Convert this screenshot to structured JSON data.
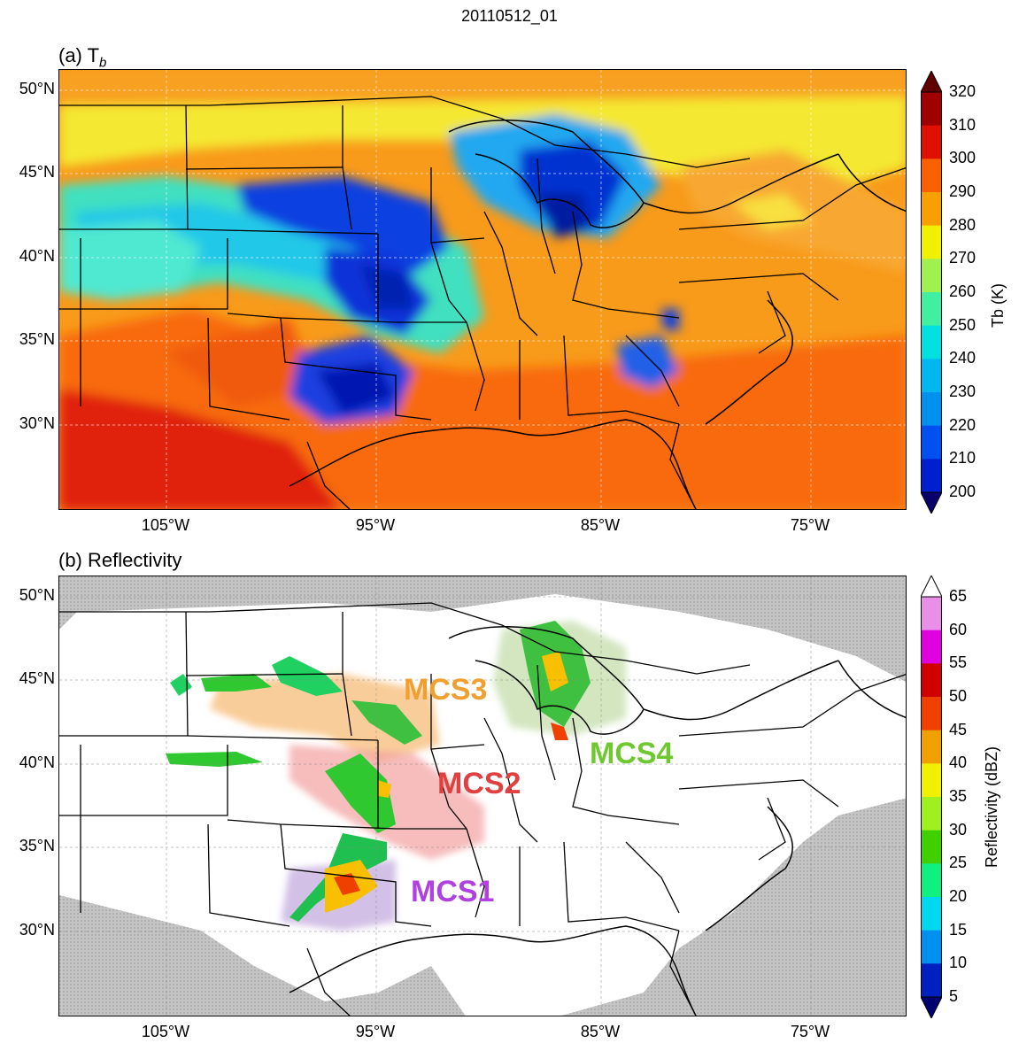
{
  "suptitle": "20110512_01",
  "panels": [
    {
      "id": "a",
      "title": "(a) T",
      "title_sub": "b",
      "lat_labels": [
        "50°N",
        "45°N",
        "40°N",
        "35°N",
        "30°N"
      ],
      "lon_labels": [
        "105°W",
        "95°W",
        "85°W",
        "75°W"
      ],
      "colorbar": {
        "label": "Tb (K)",
        "ticks": [
          "320",
          "310",
          "300",
          "290",
          "280",
          "270",
          "260",
          "250",
          "240",
          "230",
          "220",
          "210",
          "200"
        ],
        "colors": [
          "#0a006a",
          "#0020d0",
          "#0050f0",
          "#0090f0",
          "#00b8f0",
          "#00e0e0",
          "#40f0a0",
          "#a0f050",
          "#f0f000",
          "#f8a000",
          "#f86000",
          "#e01000",
          "#a00000",
          "#600000"
        ]
      }
    },
    {
      "id": "b",
      "title": "(b) Reflectivity",
      "lat_labels": [
        "50°N",
        "45°N",
        "40°N",
        "35°N",
        "30°N"
      ],
      "lon_labels": [
        "105°W",
        "95°W",
        "85°W",
        "75°W"
      ],
      "colorbar": {
        "label": "Reflectivity (dBZ)",
        "ticks": [
          "65",
          "60",
          "55",
          "50",
          "45",
          "40",
          "35",
          "30",
          "25",
          "20",
          "15",
          "10",
          "5"
        ],
        "colors": [
          "#000070",
          "#0020c0",
          "#0090f0",
          "#00d8f0",
          "#10f080",
          "#40d000",
          "#a0f020",
          "#f0f000",
          "#f0a000",
          "#f04000",
          "#d00000",
          "#e000e0",
          "#e890e8",
          "#ffffff"
        ]
      }
    }
  ],
  "systems": [
    {
      "label": "MCS3",
      "color": "#f0a030"
    },
    {
      "label": "MCS2",
      "color": "#e04040"
    },
    {
      "label": "MCS4",
      "color": "#70c830"
    },
    {
      "label": "MCS1",
      "color": "#b040e0"
    }
  ]
}
